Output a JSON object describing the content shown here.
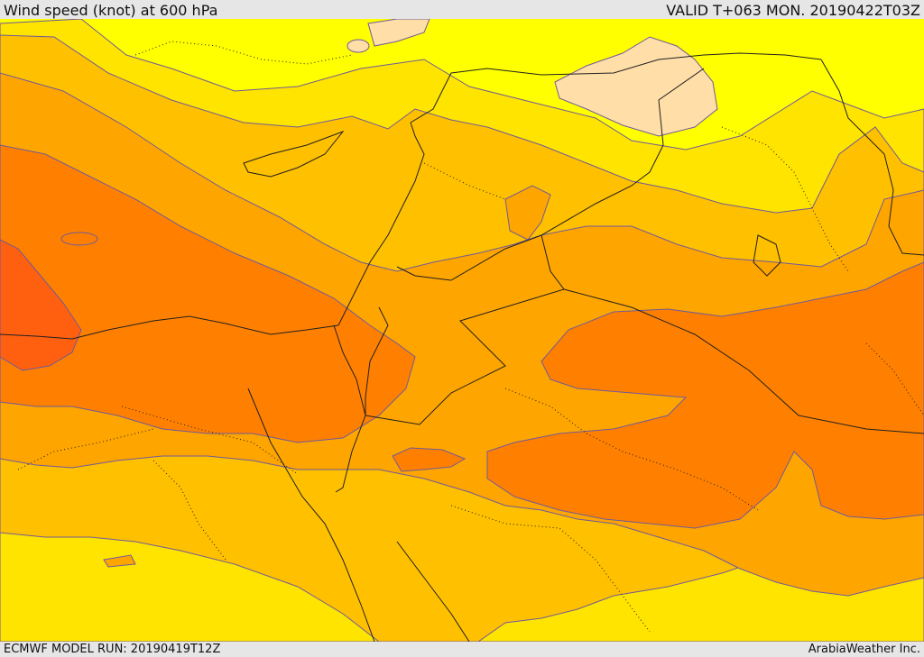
{
  "header": {
    "title": "Wind speed (knot) at 600 hPa",
    "valid": "VALID T+063 MON. 20190422T03Z"
  },
  "footer": {
    "model_run": "ECMWF MODEL RUN: 20190419T12Z",
    "credit": "ArabiaWeather Inc."
  },
  "colors": {
    "band_lt10": "#ffff00",
    "band_10_15": "#ffe400",
    "band_15_20": "#ffc000",
    "band_20_25": "#ffa500",
    "band_25_30": "#ff8000",
    "band_30_35": "#ff6010",
    "weak_spot": "#ffdea8",
    "contour": "#6f5a9a",
    "coastline": "#202020"
  }
}
